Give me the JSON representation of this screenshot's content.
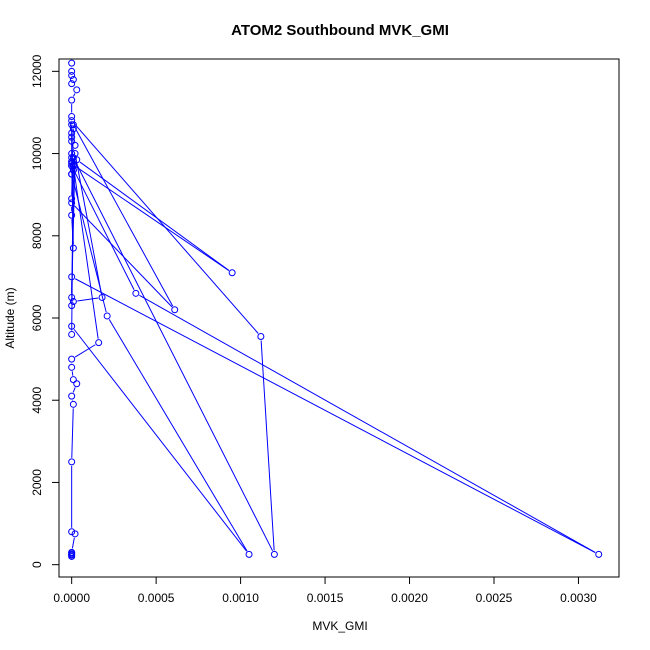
{
  "chart_data": {
    "type": "line",
    "title": "ATOM2 Southbound MVK_GMI",
    "xlabel": "MVK_GMI",
    "ylabel": "Altitude (m)",
    "xlim": [
      -7.5e-05,
      0.00324
    ],
    "ylim": [
      -300,
      12300
    ],
    "x_ticks": [
      0.0,
      0.0005,
      0.001,
      0.0015,
      0.002,
      0.0025,
      0.003
    ],
    "x_tick_labels": [
      "0.0000",
      "0.0005",
      "0.0010",
      "0.0015",
      "0.0020",
      "0.0025",
      "0.0030"
    ],
    "y_ticks": [
      0,
      2000,
      4000,
      6000,
      8000,
      10000,
      12000
    ],
    "y_tick_labels": [
      "0",
      "2000",
      "4000",
      "6000",
      "8000",
      "10000",
      "12000"
    ],
    "grid": false,
    "legend": "none",
    "color": "#0000ff",
    "series": [
      {
        "x": [
          0.0,
          0.0,
          0.0,
          1e-05,
          0.0,
          3e-05,
          0.0,
          0.0,
          0.0,
          1e-05,
          0.0,
          0.0,
          0.0,
          2e-05,
          0.0,
          0.0,
          0.0,
          0.0,
          0.00095,
          3e-05,
          0.0,
          1e-05,
          0.0,
          0.0,
          0.00112,
          0.0012,
          1e-05,
          0.0,
          1e-05,
          0.00061,
          0.0,
          0.0,
          1e-05,
          0.0,
          0.0,
          0.00038,
          0.00312,
          0.0,
          0.0,
          2e-05,
          0.00018,
          1e-05,
          0.0,
          1e-05,
          0.0,
          0.00021,
          0.00105,
          0.0,
          0.0,
          1e-05,
          0.00016,
          0.0,
          0.0,
          1e-05,
          3e-05,
          0.0,
          1e-05,
          0.0,
          0.0,
          2e-05,
          0.0,
          0.0,
          0.0,
          0.0,
          0.0
        ],
        "y": [
          12200,
          12000,
          11900,
          11800,
          11700,
          11550,
          11300,
          10900,
          10700,
          10600,
          10500,
          10400,
          10300,
          10200,
          10000,
          9900,
          9800,
          9750,
          7100,
          9850,
          9700,
          9600,
          9500,
          10800,
          5550,
          250,
          9900,
          8900,
          10700,
          6200,
          8800,
          8500,
          7700,
          9800,
          9700,
          6600,
          250,
          7000,
          6500,
          10000,
          6500,
          6400,
          6300,
          9600,
          9500,
          6050,
          250,
          5800,
          5600,
          9700,
          5400,
          5000,
          4800,
          4500,
          4400,
          4100,
          3900,
          2500,
          800,
          750,
          300,
          250,
          200,
          280,
          230
        ]
      }
    ]
  }
}
